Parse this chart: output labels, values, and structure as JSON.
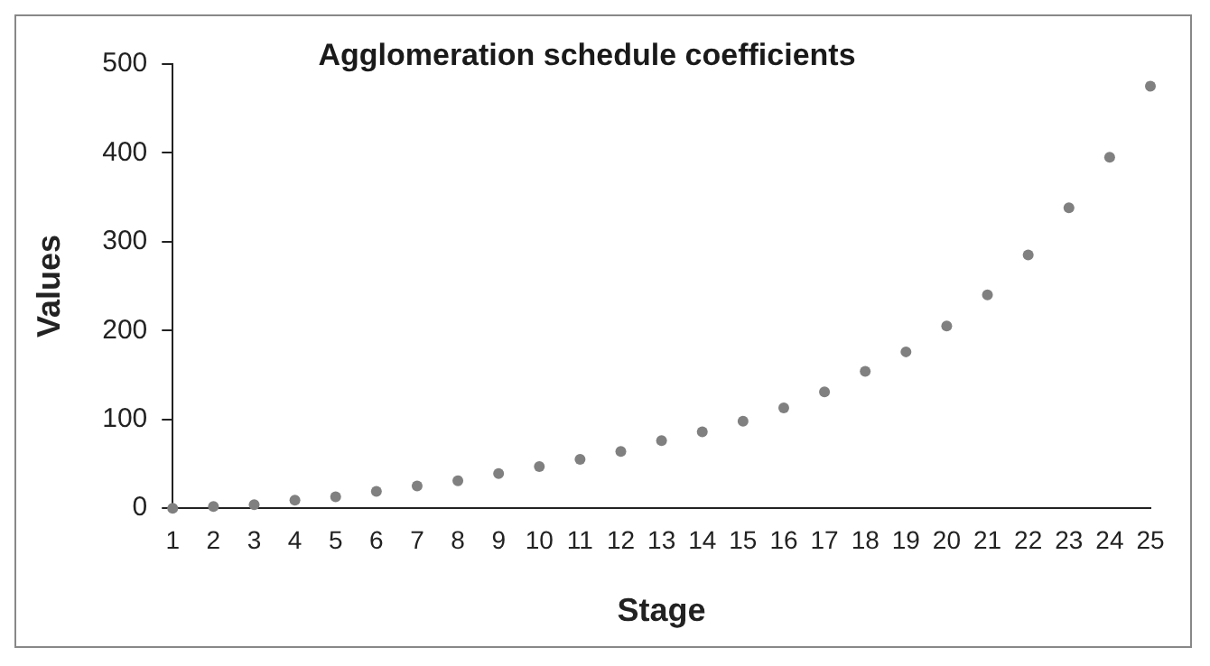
{
  "chart_data": {
    "type": "scatter",
    "title": "Agglomeration schedule coefficients",
    "xlabel": "Stage",
    "ylabel": "Values",
    "x": [
      1,
      2,
      3,
      4,
      5,
      6,
      7,
      8,
      9,
      10,
      11,
      12,
      13,
      14,
      15,
      16,
      17,
      18,
      19,
      20,
      21,
      22,
      23,
      24,
      25
    ],
    "series": [
      {
        "color": "#808080",
        "values": [
          0,
          2,
          4,
          9,
          13,
          19,
          25,
          31,
          39,
          47,
          55,
          64,
          76,
          86,
          98,
          113,
          131,
          154,
          176,
          205,
          240,
          285,
          338,
          395,
          475
        ]
      }
    ],
    "xlim": [
      1,
      25
    ],
    "xticks": [
      1,
      2,
      3,
      4,
      5,
      6,
      7,
      8,
      9,
      10,
      11,
      12,
      13,
      14,
      15,
      16,
      17,
      18,
      19,
      20,
      21,
      22,
      23,
      24,
      25
    ],
    "ylim": [
      0,
      500
    ],
    "yticks": [
      0,
      100,
      200,
      300,
      400,
      500
    ],
    "grid": false,
    "legend": false,
    "marker": "circle"
  }
}
